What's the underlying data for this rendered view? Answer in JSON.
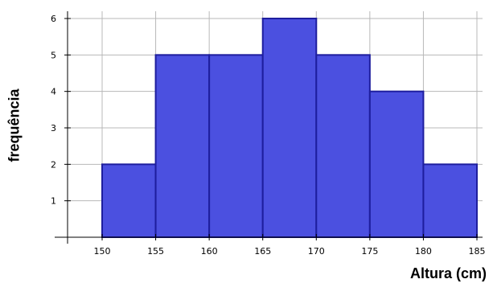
{
  "chart_data": {
    "type": "bar",
    "title": "",
    "xlabel": "Altura (cm)",
    "ylabel": "frequência",
    "bins": [
      {
        "start": 150,
        "end": 155,
        "value": 2
      },
      {
        "start": 155,
        "end": 160,
        "value": 5
      },
      {
        "start": 160,
        "end": 165,
        "value": 5
      },
      {
        "start": 165,
        "end": 170,
        "value": 6
      },
      {
        "start": 170,
        "end": 175,
        "value": 5
      },
      {
        "start": 175,
        "end": 180,
        "value": 4
      },
      {
        "start": 180,
        "end": 185,
        "value": 2
      }
    ],
    "xticks": [
      "150",
      "155",
      "160",
      "165",
      "170",
      "175",
      "180",
      "185"
    ],
    "yticks": [
      "1",
      "2",
      "3",
      "4",
      "5",
      "6"
    ],
    "xlim": [
      146,
      186
    ],
    "ylim": [
      0,
      6.3
    ],
    "grid": true,
    "bar_color": "#4b50e0",
    "bar_edge_color": "#1e1e9e"
  }
}
